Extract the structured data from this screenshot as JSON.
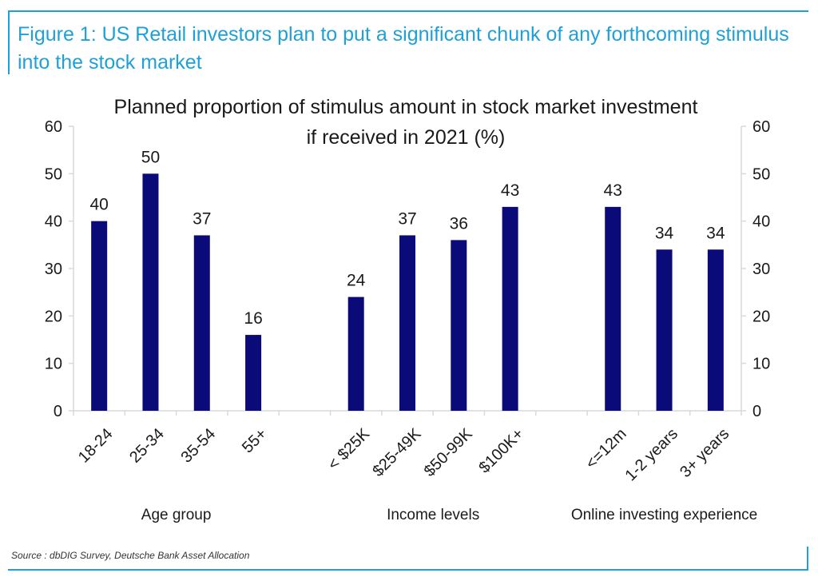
{
  "figure": {
    "title": "Figure 1: US Retail investors plan to put a significant chunk of any forthcoming stimulus into the stock market",
    "source": "Source : dbDIG Survey, Deutsche Bank Asset Allocation"
  },
  "colors": {
    "accent": "#1ea0d8",
    "bar": "#0a0a78",
    "axis": "#d9d9d9",
    "text": "#1a1a1a"
  },
  "chart_data": {
    "type": "bar",
    "title": "Planned proportion of stimulus amount in stock market investment if received in 2021 (%)",
    "title_lines": [
      "Planned proportion of stimulus amount in stock market investment",
      "if received in 2021 (%)"
    ],
    "ylim": [
      0,
      60
    ],
    "yticks": [
      0,
      10,
      20,
      30,
      40,
      50,
      60
    ],
    "grid": false,
    "secondary_axis": true,
    "groups": [
      {
        "label": "Age group",
        "categories": [
          "18-24",
          "25-34",
          "35-54",
          "55+"
        ],
        "values": [
          40,
          50,
          37,
          16
        ]
      },
      {
        "label": "Income levels",
        "categories": [
          "< $25K",
          "$25-49K",
          "$50-99K",
          "$100K+"
        ],
        "values": [
          24,
          37,
          36,
          43
        ]
      },
      {
        "label": "Online investing experience",
        "categories": [
          "<=12m",
          "1-2 years",
          "3+ years"
        ],
        "values": [
          43,
          34,
          34
        ]
      }
    ]
  }
}
